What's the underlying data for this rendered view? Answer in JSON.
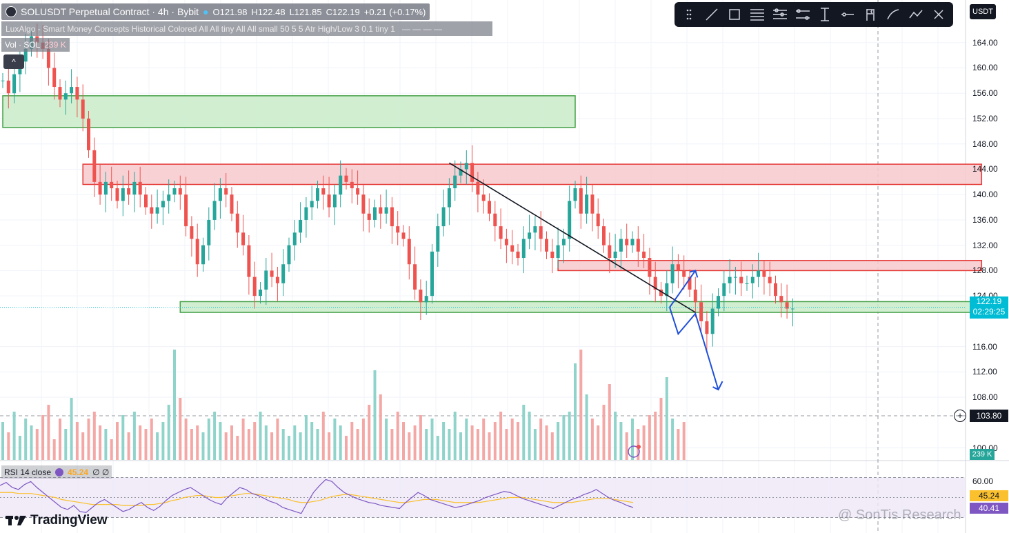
{
  "header": {
    "symbol": "SOLUSDT Perpetual Contract · 4h · Bybit",
    "open": "O121.98",
    "high": "H122.48",
    "low": "L121.85",
    "close": "C122.19",
    "change": "+0.21 (+0.17%)"
  },
  "indicator_line": "LuxAlgo - Smart Money Concepts Historical Colored All All tiny All All small 50 5 5 Atr High/Low 3 0.1 tiny 1",
  "volume_line": {
    "label": "Vol · SOL",
    "value": "239 K"
  },
  "collapse_label": "^",
  "currency": "USDT",
  "price_axis": {
    "labels": [
      "164.00",
      "160.00",
      "156.00",
      "152.00",
      "148.00",
      "144.00",
      "140.00",
      "136.00",
      "132.00",
      "128.00",
      "124.00",
      "116.00",
      "112.00",
      "108.00",
      "100.00"
    ],
    "current_price": "122.19",
    "countdown": "02:29:25",
    "crosshair_price": "103.80",
    "volume_tag": "239 K"
  },
  "rsi": {
    "label": "RSI 14 close",
    "ma_value": "45.24",
    "extras": "∅ ∅",
    "axis_label": "60.00",
    "value_tag": "45.24",
    "rsi_tag": "40.41"
  },
  "brand": "TradingView",
  "watermark": "@ SonTis Research",
  "colors": {
    "up": "#26a69a",
    "down": "#ef5350",
    "supply": "#f7c9cc",
    "demand": "#c9ebc9",
    "rsi_line": "#7e57c2",
    "rsi_ma": "#fbc02d",
    "projection": "#1e4fd8"
  },
  "chart_data": {
    "type": "candlestick",
    "title": "SOLUSDT Perpetual Contract · 4h · Bybit",
    "ylim": [
      98,
      168
    ],
    "zones": [
      {
        "kind": "demand",
        "x": [
          0,
          100
        ],
        "y": [
          150.6,
          155.6
        ]
      },
      {
        "kind": "supply",
        "x": [
          14,
          171
        ],
        "y": [
          141.6,
          144.8
        ]
      },
      {
        "kind": "supply",
        "x": [
          97,
          171
        ],
        "y": [
          128,
          129.6
        ]
      },
      {
        "kind": "demand",
        "x": [
          31,
          171
        ],
        "y": [
          121.4,
          123.1
        ]
      }
    ],
    "trendline": [
      [
        78,
        145
      ],
      [
        121,
        121.4
      ]
    ],
    "projection": [
      [
        116.5,
        122.2
      ],
      [
        118,
        118
      ],
      [
        121,
        121.2
      ],
      [
        125,
        109.2
      ]
    ],
    "projection_up": [
      [
        116.5,
        122.2
      ],
      [
        121,
        128
      ]
    ],
    "closes": [
      158,
      156,
      159,
      161,
      163,
      165,
      164,
      163,
      160,
      157,
      155,
      156,
      157,
      155,
      152,
      147,
      142,
      140,
      142,
      141,
      139,
      141,
      140,
      142,
      140,
      138,
      137,
      138,
      139,
      140,
      141,
      140,
      135,
      133,
      129,
      132,
      136,
      139,
      141,
      140,
      137,
      134,
      132,
      127,
      124,
      125,
      128,
      127,
      126,
      129,
      132,
      134,
      136,
      138,
      139,
      141,
      140,
      138,
      140,
      143,
      142,
      141,
      140,
      137,
      136,
      138,
      137,
      138,
      135,
      134,
      133,
      129,
      125,
      123,
      124,
      131,
      135,
      138,
      141,
      143,
      144,
      145,
      142,
      140,
      139,
      137,
      135,
      133,
      132,
      131,
      130,
      133,
      134,
      135,
      133,
      131,
      130,
      132,
      133,
      139,
      141,
      137,
      140,
      137,
      135,
      132,
      130,
      131,
      133,
      132,
      133,
      131,
      130,
      127,
      125,
      124,
      126,
      129,
      128,
      127,
      125,
      123,
      120,
      118,
      122,
      124,
      126,
      127,
      127,
      126,
      126,
      127,
      128,
      127,
      126,
      124,
      123,
      122,
      122
    ],
    "volume": [
      55,
      40,
      70,
      35,
      60,
      50,
      45,
      65,
      80,
      30,
      60,
      45,
      90,
      55,
      40,
      60,
      70,
      50,
      45,
      30,
      55,
      65,
      40,
      70,
      50,
      45,
      60,
      40,
      55,
      80,
      160,
      90,
      60,
      45,
      50,
      40,
      60,
      70,
      55,
      40,
      50,
      35,
      60,
      45,
      55,
      70,
      50,
      40,
      60,
      45,
      35,
      50,
      40,
      65,
      55,
      45,
      70,
      40,
      60,
      50,
      35,
      55,
      45,
      60,
      80,
      130,
      95,
      60,
      45,
      70,
      55,
      40,
      50,
      65,
      45,
      60,
      35,
      55,
      45,
      70,
      40,
      60,
      50,
      45,
      60,
      40,
      55,
      70,
      45,
      60,
      55,
      80,
      70,
      45,
      60,
      50,
      40,
      55,
      65,
      70,
      140,
      160,
      95,
      60,
      50,
      80,
      110,
      70,
      55,
      40,
      60,
      45,
      50,
      65,
      70,
      90,
      120,
      60,
      45,
      55
    ],
    "rsi": [
      62,
      65,
      60,
      58,
      63,
      66,
      60,
      55,
      50,
      45,
      40,
      38,
      42,
      36,
      35,
      40,
      45,
      48,
      44,
      40,
      36,
      38,
      42,
      45,
      40,
      37,
      41,
      47,
      52,
      55,
      58,
      60,
      56,
      52,
      48,
      45,
      43,
      50,
      55,
      60,
      58,
      54,
      52,
      49,
      46,
      44,
      40,
      38,
      36,
      34,
      45,
      55,
      62,
      68,
      66,
      60,
      55,
      52,
      49,
      47,
      45,
      44,
      42,
      41,
      40,
      39,
      45,
      50,
      55,
      52,
      48,
      46,
      44,
      42,
      40,
      41,
      43,
      45,
      47,
      50,
      52,
      54,
      56,
      55,
      52,
      49,
      47,
      45,
      43,
      41,
      39,
      42,
      45,
      48,
      50,
      53,
      55,
      58,
      54,
      50,
      47,
      45,
      42,
      40
    ],
    "rsi_ma": [
      55,
      55,
      55,
      54,
      54,
      54,
      53,
      52,
      51,
      50,
      48,
      47,
      46,
      45,
      44,
      43,
      43,
      43,
      43,
      43,
      42,
      42,
      42,
      42,
      43,
      43,
      44,
      45,
      47,
      48,
      50,
      51,
      52,
      52,
      51,
      50,
      50,
      51,
      52,
      53,
      54,
      54,
      53,
      52,
      51,
      50,
      49,
      48,
      46,
      45,
      45,
      46,
      47,
      49,
      51,
      52,
      53,
      53,
      52,
      51,
      50,
      49,
      48,
      47,
      46,
      45,
      45,
      46,
      47,
      48,
      48,
      48,
      47,
      46,
      45,
      45,
      45,
      45,
      45,
      46,
      47,
      48,
      49,
      50,
      50,
      50,
      49,
      48,
      47,
      46,
      45,
      45,
      45,
      45,
      46,
      47,
      48,
      49,
      49,
      49,
      48,
      47,
      46,
      45
    ]
  }
}
